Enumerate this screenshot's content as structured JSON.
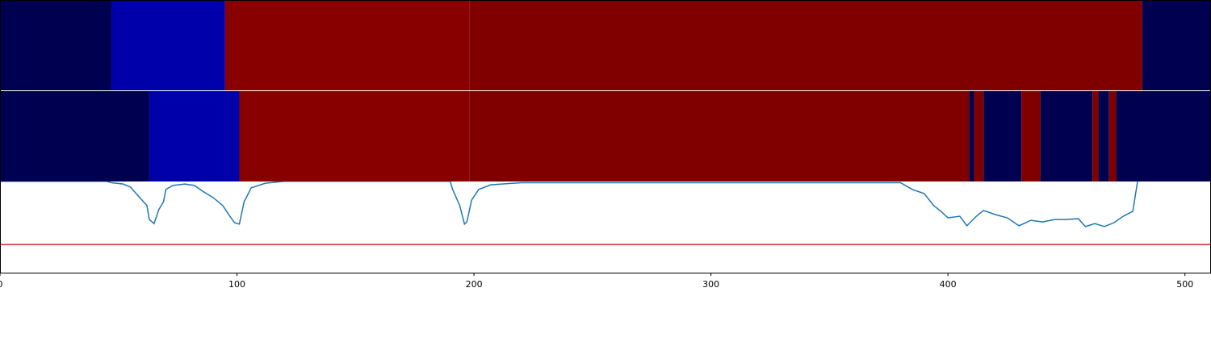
{
  "chart_data": {
    "type": "line",
    "xlim": [
      0,
      511
    ],
    "ylim": [
      0,
      1
    ],
    "xticks": [
      0,
      100,
      200,
      300,
      400,
      500
    ],
    "color": "#1f77b4",
    "threshold": {
      "value": 0.103,
      "color": "#d62728"
    },
    "x": [
      0,
      45,
      47,
      52,
      55,
      59,
      62,
      63,
      65,
      67,
      69,
      70,
      73,
      78,
      82,
      86,
      90,
      94,
      97,
      99,
      101,
      103,
      106,
      112,
      120,
      190,
      191,
      194,
      196,
      197,
      199,
      202,
      207,
      220,
      380,
      385,
      390,
      394,
      397,
      400,
      405,
      408,
      412,
      415,
      420,
      425,
      430,
      435,
      440,
      445,
      450,
      455,
      458,
      462,
      466,
      470,
      474,
      478,
      480,
      482,
      511
    ],
    "values": [
      0.335,
      0.335,
      0.33,
      0.325,
      0.314,
      0.275,
      0.246,
      0.195,
      0.18,
      0.231,
      0.26,
      0.305,
      0.32,
      0.325,
      0.32,
      0.296,
      0.275,
      0.246,
      0.207,
      0.183,
      0.178,
      0.26,
      0.311,
      0.328,
      0.335,
      0.335,
      0.305,
      0.246,
      0.178,
      0.186,
      0.266,
      0.305,
      0.322,
      0.33,
      0.33,
      0.305,
      0.29,
      0.246,
      0.225,
      0.201,
      0.207,
      0.172,
      0.207,
      0.228,
      0.213,
      0.201,
      0.172,
      0.192,
      0.186,
      0.195,
      0.195,
      0.198,
      0.169,
      0.18,
      0.169,
      0.183,
      0.207,
      0.225,
      0.334,
      0.5,
      0.335
    ],
    "bands": [
      {
        "segments": [
          {
            "start": 0,
            "end": 47,
            "color": "#000050"
          },
          {
            "start": 47,
            "end": 95,
            "color": "#0000aa"
          },
          {
            "start": 95,
            "end": 198,
            "color": "#880000"
          },
          {
            "start": 198,
            "end": 482,
            "color": "#800000"
          },
          {
            "start": 482,
            "end": 511,
            "color": "#000050"
          }
        ]
      },
      {
        "segments": [
          {
            "start": 0,
            "end": 63,
            "color": "#000050"
          },
          {
            "start": 63,
            "end": 101,
            "color": "#0000aa"
          },
          {
            "start": 101,
            "end": 198,
            "color": "#880000"
          },
          {
            "start": 198,
            "end": 409,
            "color": "#800000"
          },
          {
            "start": 409,
            "end": 411,
            "color": "#000050"
          },
          {
            "start": 411,
            "end": 415,
            "color": "#800000"
          },
          {
            "start": 415,
            "end": 431,
            "color": "#000050"
          },
          {
            "start": 431,
            "end": 439,
            "color": "#800000"
          },
          {
            "start": 439,
            "end": 461,
            "color": "#000050"
          },
          {
            "start": 461,
            "end": 463.5,
            "color": "#800000"
          },
          {
            "start": 463.5,
            "end": 468,
            "color": "#000050"
          },
          {
            "start": 468,
            "end": 471,
            "color": "#800000"
          },
          {
            "start": 471,
            "end": 511,
            "color": "#000050"
          }
        ]
      }
    ]
  }
}
